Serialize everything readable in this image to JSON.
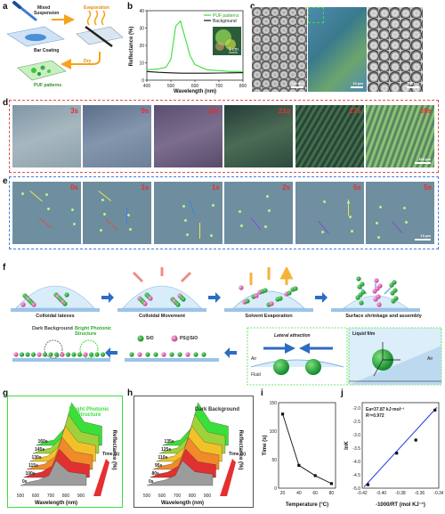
{
  "panel_labels": [
    "a",
    "b",
    "c",
    "d",
    "e",
    "f",
    "g",
    "h",
    "i",
    "j"
  ],
  "panel_a": {
    "mixed": "Mixed",
    "suspension": "Suspension",
    "evaporation": "Evaporation",
    "bar_coating": "Bar Coating",
    "dry": "Dry",
    "puf": "PUF patterns"
  },
  "panel_b": {
    "legend": [
      "PUF patterns",
      "Background"
    ],
    "ylabel": "Reflectance (%)",
    "xlabel": "Wavelength (nm)",
    "inset_scale": "1 cm",
    "colors": {
      "puf": "#3adf3a",
      "background": "#111111"
    }
  },
  "panel_c": {
    "scales": [
      "500 nm",
      "10 μm",
      "500 nm"
    ]
  },
  "panel_d": {
    "times": [
      "3s",
      "9s",
      "15s",
      "21s",
      "27s",
      "39s"
    ],
    "scale": "100 μm"
  },
  "panel_e": {
    "times": [
      "0s",
      "1s",
      "1s",
      "2s",
      "5s",
      "5s"
    ],
    "scale": "10 μm"
  },
  "panel_f": {
    "steps": [
      "Colloidal latexes",
      "Colloidal Movement",
      "Solvent Evaporation",
      "Surface shrinkage and assembly"
    ],
    "dark_bg": "Dark Background",
    "bright": "Bright Photonic Structure",
    "sio2": "SiO",
    "ps_sio2": "PS@SiO",
    "lateral": "Lateral attraction",
    "air": "Air",
    "fluid": "Fluid",
    "liquid_film": "Liquid film",
    "air2": "Air"
  },
  "panel_g": {
    "title": "Bright Photonic Structure",
    "times": [
      "0s",
      "100s",
      "115s",
      "130s",
      "145s",
      "160s"
    ],
    "xlabel": "Wavelength (nm)",
    "ylabel": "Reflectance (%)",
    "side": "Time (s)"
  },
  "panel_h": {
    "title": "Dark Background",
    "times": [
      "0s",
      "80s",
      "95s",
      "110s",
      "125s",
      "135s"
    ],
    "xlabel": "Wavelength (nm)",
    "ylabel": "Reflectance (%)",
    "side": "Time (s)"
  },
  "chart_data": [
    {
      "panel": "b",
      "type": "line",
      "xlabel": "Wavelength (nm)",
      "ylabel": "Reflectance (%)",
      "xlim": [
        400,
        800
      ],
      "ylim": [
        0,
        40
      ],
      "xticks": [
        400,
        500,
        600,
        700,
        800
      ],
      "yticks": [
        0,
        10,
        20,
        30,
        40
      ],
      "series": [
        {
          "name": "PUF patterns",
          "x": [
            400,
            450,
            480,
            500,
            520,
            540,
            560,
            580,
            600,
            650,
            700,
            750,
            800
          ],
          "values": [
            6,
            6.5,
            7.5,
            12,
            31,
            34,
            24,
            14,
            9,
            6,
            5.5,
            5,
            5
          ]
        },
        {
          "name": "Background",
          "x": [
            400,
            450,
            500,
            550,
            600,
            650,
            700,
            750,
            800
          ],
          "values": [
            5,
            4.5,
            4.2,
            4,
            4,
            4,
            4.1,
            4.2,
            4.3
          ]
        }
      ]
    },
    {
      "panel": "i",
      "type": "line",
      "xlabel": "Temperature (°C)",
      "ylabel": "Time (s)",
      "xlim": [
        15,
        85
      ],
      "ylim": [
        0,
        150
      ],
      "xticks": [
        20,
        40,
        60,
        80
      ],
      "yticks": [
        0,
        50,
        100,
        150
      ],
      "series": [
        {
          "name": "",
          "x": [
            20,
            40,
            60,
            80
          ],
          "values": [
            130,
            40,
            22,
            8
          ]
        }
      ]
    },
    {
      "panel": "j",
      "type": "scatter",
      "xlabel": "-1000/RT (mol KJ⁻¹)",
      "ylabel": "lnK",
      "xlim": [
        -0.42,
        -0.34
      ],
      "ylim": [
        -5.0,
        -1.8
      ],
      "xticks": [
        -0.42,
        -0.4,
        -0.38,
        -0.36,
        -0.34
      ],
      "yticks": [
        -2.0,
        -2.5,
        -3.0,
        -3.5,
        -4.0,
        -4.5,
        -5.0
      ],
      "annotations": [
        "Ea=37.87 kJ·mol⁻¹",
        "R²=0.972"
      ],
      "series": [
        {
          "name": "",
          "x": [
            -0.414,
            -0.384,
            -0.364,
            -0.344
          ],
          "values": [
            -4.87,
            -3.69,
            -3.2,
            -2.08
          ]
        }
      ]
    }
  ]
}
